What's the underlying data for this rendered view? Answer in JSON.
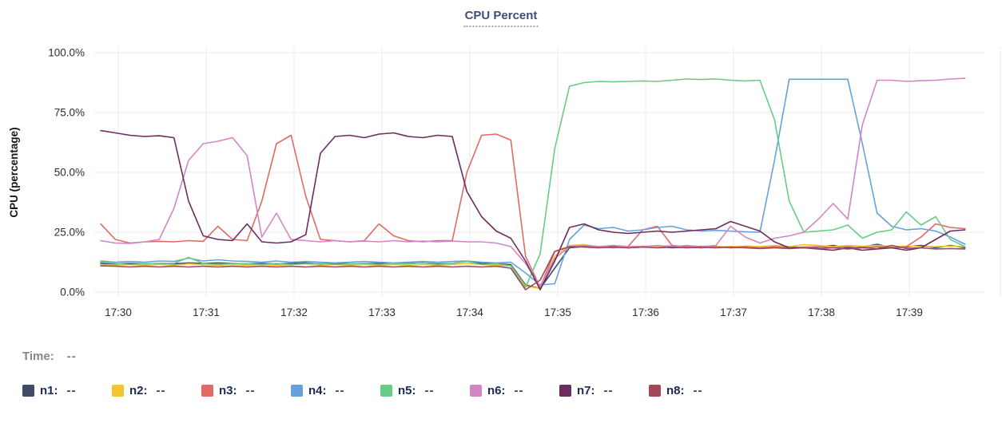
{
  "title": "CPU Percent",
  "readout": {
    "time_label": "Time:",
    "time_value": "--"
  },
  "axis": {
    "ylabel": "CPU (percentage)",
    "y_ticks": [
      "0.0%",
      "25.0%",
      "50.0%",
      "75.0%",
      "100.0%"
    ],
    "y_tick_values": [
      0,
      25,
      50,
      75,
      100
    ],
    "x_ticks": [
      "17:30",
      "17:31",
      "17:32",
      "17:33",
      "17:34",
      "17:35",
      "17:36",
      "17:37",
      "17:38",
      "17:39"
    ]
  },
  "colors": {
    "grid": "#ebebeb",
    "axis_text": "#2e2e2e",
    "title_text": "#3e4e7c"
  },
  "chart_data": {
    "type": "line",
    "title": "CPU Percent",
    "xlabel": "",
    "ylabel": "CPU (percentage)",
    "ylim": [
      0,
      100
    ],
    "grid": true,
    "legend_position": "bottom",
    "x_tick_labels": [
      "17:30",
      "17:31",
      "17:32",
      "17:33",
      "17:34",
      "17:35",
      "17:36",
      "17:37",
      "17:38",
      "17:39"
    ],
    "x_tick_minutes": [
      0,
      1,
      2,
      3,
      4,
      5,
      6,
      7,
      8,
      9
    ],
    "x_start_minute": -0.2,
    "x_step_minute": 0.1666667,
    "y_tick_labels": [
      "0.0%",
      "25.0%",
      "50.0%",
      "75.0%",
      "100.0%"
    ],
    "y_tick_values": [
      0,
      25,
      50,
      75,
      100
    ],
    "series": [
      {
        "name": "n1",
        "legend_label": "n1:",
        "legend_value": "--",
        "color": "#3e4a68",
        "values": [
          12,
          11.8,
          12,
          11.8,
          12,
          11.8,
          12.2,
          12,
          12.2,
          12,
          11.8,
          12,
          11.8,
          12,
          12.2,
          11.8,
          12,
          11.8,
          12,
          12,
          11.8,
          12,
          12.2,
          11.8,
          12,
          12.8,
          12,
          11.8,
          11.5,
          3,
          1.5,
          10,
          18.5,
          19,
          18.8,
          19,
          18.5,
          18.8,
          19,
          18.5,
          18.8,
          18.5,
          19,
          18.5,
          18.8,
          18.5,
          18.8,
          19,
          18.5,
          18.8,
          19.5,
          18.5,
          18.8,
          20,
          18.5,
          18.8,
          19.5,
          18.5,
          19.5,
          18.5
        ]
      },
      {
        "name": "n2",
        "legend_label": "n2:",
        "legend_value": "--",
        "color": "#f0c432",
        "values": [
          11.5,
          11.2,
          11.5,
          11.2,
          11.5,
          11.2,
          11.8,
          11.5,
          11.2,
          11.5,
          11.2,
          11.5,
          11.2,
          11.5,
          11.8,
          11.2,
          11.5,
          11.2,
          11.5,
          11.2,
          11.5,
          11.2,
          11.5,
          11.2,
          11.5,
          12,
          11.5,
          11.2,
          11,
          2.5,
          1.5,
          15,
          19.5,
          19.8,
          19,
          19.5,
          19,
          19.2,
          19,
          19.5,
          19,
          19.2,
          19,
          19,
          19.2,
          19,
          19.5,
          19,
          19.8,
          19.5,
          19,
          19.5,
          19.2,
          19.5,
          19,
          19.2,
          19,
          19,
          19.2,
          19
        ]
      },
      {
        "name": "n3",
        "legend_label": "n3:",
        "legend_value": "--",
        "color": "#e06a64",
        "values": [
          28.5,
          22,
          20.5,
          21,
          21.2,
          21,
          21.5,
          21.2,
          27.5,
          22,
          21.5,
          38,
          62,
          65.5,
          40,
          22,
          21.5,
          21,
          21.5,
          28.5,
          23.5,
          21.5,
          21,
          21.5,
          21.5,
          50,
          65.5,
          66,
          63.5,
          15,
          2,
          17,
          19,
          19.5,
          19,
          18.5,
          19,
          26,
          27.5,
          19.5,
          19,
          18.5,
          19,
          18.5,
          19,
          18.5,
          19,
          18.5,
          18.8,
          19,
          18.5,
          19,
          18.5,
          19,
          18.5,
          19,
          23,
          28.5,
          27,
          26.5
        ]
      },
      {
        "name": "n4",
        "legend_label": "n4:",
        "legend_value": "--",
        "color": "#66a2d9",
        "values": [
          13,
          12.5,
          12.8,
          12.5,
          13,
          12.8,
          14.2,
          13,
          13.5,
          13,
          12.8,
          12.5,
          13,
          12.5,
          12.8,
          12.5,
          12.2,
          12.5,
          12.8,
          12.5,
          12.2,
          12.5,
          12.8,
          12.5,
          12.8,
          13,
          12.5,
          12.2,
          12.5,
          8,
          3,
          3.5,
          22,
          28,
          26.5,
          27,
          25.5,
          26,
          27,
          27.5,
          26,
          25.5,
          25.8,
          25.5,
          25.2,
          25,
          55,
          88.9,
          88.9,
          88.9,
          88.9,
          88.9,
          62,
          33,
          27.5,
          26,
          26.5,
          25.5,
          23,
          20
        ]
      },
      {
        "name": "n5",
        "legend_label": "n5:",
        "legend_value": "--",
        "color": "#69cc84",
        "values": [
          12.5,
          12,
          11.5,
          11.8,
          12,
          12,
          14.5,
          12,
          11.5,
          12,
          11.8,
          11.5,
          12,
          11.5,
          11.8,
          12,
          11.5,
          11.8,
          12,
          11.5,
          12,
          11.8,
          12.2,
          11.5,
          12,
          12.8,
          11.5,
          11.8,
          11,
          2,
          16,
          60,
          86,
          87.5,
          88,
          87.8,
          88,
          88.2,
          88,
          88.5,
          89,
          88.8,
          89,
          88.5,
          88.2,
          88.5,
          72,
          38,
          25,
          25.5,
          26,
          28,
          22.5,
          25,
          26,
          33.5,
          28,
          31.5,
          22,
          19
        ]
      },
      {
        "name": "n6",
        "legend_label": "n6:",
        "legend_value": "--",
        "color": "#d286c4",
        "values": [
          21.5,
          20.5,
          20.3,
          21,
          22,
          35,
          55,
          62,
          63,
          64.5,
          57,
          23,
          33,
          22,
          21.5,
          21,
          21.5,
          21,
          21.3,
          21,
          21.5,
          21,
          21.3,
          21,
          21.3,
          21,
          21,
          20.5,
          19,
          12,
          2.5,
          14,
          19,
          19.5,
          19,
          19.5,
          19,
          19,
          19.5,
          19,
          19.5,
          19,
          19.5,
          27.5,
          23,
          20.5,
          22.5,
          23.5,
          25,
          30.5,
          37,
          30.5,
          70,
          88.5,
          88.5,
          88,
          88.3,
          88.5,
          89,
          89.3
        ]
      },
      {
        "name": "n7",
        "legend_label": "n7:",
        "legend_value": "--",
        "color": "#6d2c5e",
        "values": [
          67.5,
          66.5,
          65.5,
          65,
          65.3,
          64.5,
          38,
          23.5,
          22,
          21.5,
          28.5,
          21,
          20.5,
          21,
          24,
          58,
          65,
          65.5,
          64.5,
          66,
          66.5,
          65,
          64.5,
          65.5,
          65,
          42,
          31.5,
          25.5,
          22.5,
          13,
          1,
          13,
          27,
          28.5,
          26,
          25,
          24.5,
          25,
          25.5,
          25,
          25.5,
          26,
          26.5,
          29.5,
          27.5,
          25.5,
          21,
          18.5,
          18.5,
          18,
          17.5,
          18.5,
          17.5,
          18,
          18.5,
          17.5,
          18.5,
          22,
          25.5,
          26
        ]
      },
      {
        "name": "n8",
        "legend_label": "n8:",
        "legend_value": "--",
        "color": "#a24858",
        "values": [
          11,
          10.8,
          10.5,
          10.8,
          10.5,
          10.8,
          10.5,
          10.8,
          10.5,
          10.8,
          10.5,
          10.8,
          10.5,
          10.8,
          10.5,
          10.8,
          10.5,
          10.8,
          10.5,
          10.8,
          10.5,
          10.8,
          10.5,
          10.8,
          10.5,
          10.8,
          10.5,
          10.8,
          10,
          1,
          5,
          17,
          19,
          18.8,
          18.5,
          18.8,
          18.5,
          18.8,
          18.5,
          18.8,
          18.5,
          18.8,
          18.5,
          18.8,
          18.5,
          18.2,
          18.5,
          18.2,
          18.5,
          18.2,
          18.5,
          18,
          18.5,
          18.2,
          19.5,
          18.2,
          18.5,
          18,
          18.2,
          18
        ]
      }
    ]
  }
}
